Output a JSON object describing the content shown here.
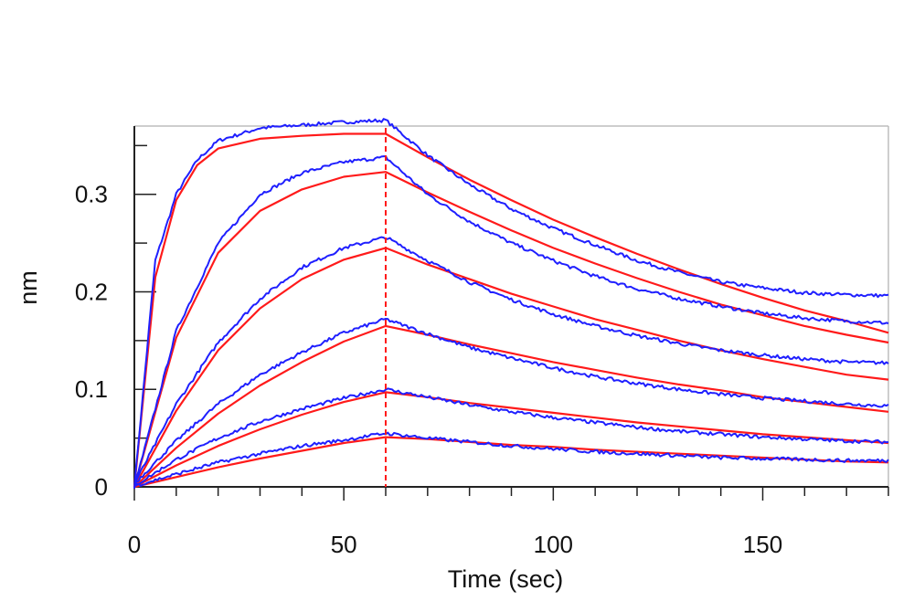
{
  "chart_data": {
    "type": "line",
    "xlabel": "Time (sec)",
    "ylabel": "nm",
    "xlim": [
      0,
      180
    ],
    "ylim": [
      0,
      0.37
    ],
    "x_ticks": [
      0,
      50,
      100,
      150
    ],
    "x_tick_labels": [
      "0",
      "50",
      "100",
      "150"
    ],
    "x_minor_step": 10,
    "y_ticks": [
      0,
      0.1,
      0.2,
      0.3
    ],
    "y_tick_labels": [
      "0",
      "0.1",
      "0.2",
      "0.3"
    ],
    "y_minor_step": 0.05,
    "grid": false,
    "legend": "none",
    "dissociation_start": 60,
    "colors": {
      "measured": "#1f1fff",
      "fit": "#ff1a1a",
      "marker": "#ff1a1a",
      "frame": "#bdbdbd",
      "axis": "#222222"
    },
    "series": [
      {
        "kind": "measured",
        "values": [
          [
            0,
            0
          ],
          [
            5,
            0.232
          ],
          [
            10,
            0.3
          ],
          [
            15,
            0.335
          ],
          [
            20,
            0.355
          ],
          [
            30,
            0.368
          ],
          [
            40,
            0.371
          ],
          [
            50,
            0.374
          ],
          [
            60,
            0.376
          ],
          [
            70,
            0.34
          ],
          [
            80,
            0.31
          ],
          [
            90,
            0.285
          ],
          [
            100,
            0.265
          ],
          [
            110,
            0.248
          ],
          [
            120,
            0.232
          ],
          [
            130,
            0.22
          ],
          [
            140,
            0.21
          ],
          [
            150,
            0.204
          ],
          [
            160,
            0.199
          ],
          [
            170,
            0.197
          ],
          [
            180,
            0.196
          ]
        ]
      },
      {
        "kind": "fit",
        "values": [
          [
            0,
            0
          ],
          [
            5,
            0.215
          ],
          [
            10,
            0.294
          ],
          [
            15,
            0.33
          ],
          [
            20,
            0.347
          ],
          [
            30,
            0.357
          ],
          [
            40,
            0.36
          ],
          [
            50,
            0.362
          ],
          [
            60,
            0.362
          ],
          [
            70,
            0.338
          ],
          [
            80,
            0.315
          ],
          [
            90,
            0.294
          ],
          [
            100,
            0.274
          ],
          [
            110,
            0.256
          ],
          [
            120,
            0.239
          ],
          [
            130,
            0.223
          ],
          [
            140,
            0.208
          ],
          [
            150,
            0.194
          ],
          [
            160,
            0.181
          ],
          [
            170,
            0.17
          ],
          [
            180,
            0.158
          ]
        ]
      },
      {
        "kind": "measured",
        "values": [
          [
            0,
            0
          ],
          [
            10,
            0.16
          ],
          [
            20,
            0.25
          ],
          [
            30,
            0.3
          ],
          [
            40,
            0.322
          ],
          [
            50,
            0.333
          ],
          [
            60,
            0.338
          ],
          [
            70,
            0.3
          ],
          [
            80,
            0.272
          ],
          [
            90,
            0.25
          ],
          [
            100,
            0.232
          ],
          [
            110,
            0.216
          ],
          [
            120,
            0.203
          ],
          [
            130,
            0.193
          ],
          [
            140,
            0.185
          ],
          [
            150,
            0.178
          ],
          [
            160,
            0.173
          ],
          [
            170,
            0.17
          ],
          [
            180,
            0.168
          ]
        ]
      },
      {
        "kind": "fit",
        "values": [
          [
            0,
            0
          ],
          [
            10,
            0.153
          ],
          [
            20,
            0.24
          ],
          [
            30,
            0.283
          ],
          [
            40,
            0.305
          ],
          [
            50,
            0.318
          ],
          [
            60,
            0.323
          ],
          [
            70,
            0.302
          ],
          [
            80,
            0.282
          ],
          [
            90,
            0.263
          ],
          [
            100,
            0.245
          ],
          [
            110,
            0.229
          ],
          [
            120,
            0.214
          ],
          [
            130,
            0.2
          ],
          [
            140,
            0.187
          ],
          [
            150,
            0.176
          ],
          [
            160,
            0.165
          ],
          [
            170,
            0.156
          ],
          [
            180,
            0.148
          ]
        ]
      },
      {
        "kind": "measured",
        "values": [
          [
            0,
            0.003
          ],
          [
            10,
            0.085
          ],
          [
            20,
            0.148
          ],
          [
            30,
            0.193
          ],
          [
            40,
            0.225
          ],
          [
            50,
            0.245
          ],
          [
            60,
            0.256
          ],
          [
            70,
            0.232
          ],
          [
            80,
            0.21
          ],
          [
            90,
            0.192
          ],
          [
            100,
            0.177
          ],
          [
            110,
            0.165
          ],
          [
            120,
            0.155
          ],
          [
            130,
            0.147
          ],
          [
            140,
            0.14
          ],
          [
            150,
            0.135
          ],
          [
            160,
            0.131
          ],
          [
            170,
            0.128
          ],
          [
            180,
            0.127
          ]
        ]
      },
      {
        "kind": "fit",
        "values": [
          [
            0,
            0
          ],
          [
            10,
            0.078
          ],
          [
            20,
            0.14
          ],
          [
            30,
            0.183
          ],
          [
            40,
            0.213
          ],
          [
            50,
            0.233
          ],
          [
            60,
            0.245
          ],
          [
            70,
            0.228
          ],
          [
            80,
            0.213
          ],
          [
            90,
            0.198
          ],
          [
            100,
            0.185
          ],
          [
            110,
            0.172
          ],
          [
            120,
            0.161
          ],
          [
            130,
            0.15
          ],
          [
            140,
            0.14
          ],
          [
            150,
            0.131
          ],
          [
            160,
            0.123
          ],
          [
            170,
            0.115
          ],
          [
            180,
            0.11
          ]
        ]
      },
      {
        "kind": "measured",
        "values": [
          [
            0,
            0.003
          ],
          [
            10,
            0.047
          ],
          [
            20,
            0.085
          ],
          [
            30,
            0.115
          ],
          [
            40,
            0.138
          ],
          [
            50,
            0.158
          ],
          [
            60,
            0.172
          ],
          [
            70,
            0.157
          ],
          [
            80,
            0.143
          ],
          [
            90,
            0.132
          ],
          [
            100,
            0.122
          ],
          [
            110,
            0.113
          ],
          [
            120,
            0.106
          ],
          [
            130,
            0.1
          ],
          [
            140,
            0.095
          ],
          [
            150,
            0.091
          ],
          [
            160,
            0.088
          ],
          [
            170,
            0.085
          ],
          [
            180,
            0.083
          ]
        ]
      },
      {
        "kind": "fit",
        "values": [
          [
            0,
            0
          ],
          [
            10,
            0.04
          ],
          [
            20,
            0.075
          ],
          [
            30,
            0.104
          ],
          [
            40,
            0.128
          ],
          [
            50,
            0.149
          ],
          [
            60,
            0.165
          ],
          [
            70,
            0.156
          ],
          [
            80,
            0.146
          ],
          [
            90,
            0.137
          ],
          [
            100,
            0.128
          ],
          [
            110,
            0.12
          ],
          [
            120,
            0.112
          ],
          [
            130,
            0.105
          ],
          [
            140,
            0.099
          ],
          [
            150,
            0.092
          ],
          [
            160,
            0.087
          ],
          [
            170,
            0.082
          ],
          [
            180,
            0.077
          ]
        ]
      },
      {
        "kind": "measured",
        "values": [
          [
            0,
            0.001
          ],
          [
            10,
            0.028
          ],
          [
            20,
            0.05
          ],
          [
            30,
            0.067
          ],
          [
            40,
            0.08
          ],
          [
            50,
            0.091
          ],
          [
            60,
            0.1
          ],
          [
            70,
            0.092
          ],
          [
            80,
            0.084
          ],
          [
            90,
            0.077
          ],
          [
            100,
            0.071
          ],
          [
            110,
            0.066
          ],
          [
            120,
            0.061
          ],
          [
            130,
            0.057
          ],
          [
            140,
            0.054
          ],
          [
            150,
            0.051
          ],
          [
            160,
            0.049
          ],
          [
            170,
            0.047
          ],
          [
            180,
            0.046
          ]
        ]
      },
      {
        "kind": "fit",
        "values": [
          [
            0,
            0
          ],
          [
            10,
            0.022
          ],
          [
            20,
            0.042
          ],
          [
            30,
            0.059
          ],
          [
            40,
            0.074
          ],
          [
            50,
            0.087
          ],
          [
            60,
            0.097
          ],
          [
            70,
            0.092
          ],
          [
            80,
            0.086
          ],
          [
            90,
            0.081
          ],
          [
            100,
            0.076
          ],
          [
            110,
            0.071
          ],
          [
            120,
            0.066
          ],
          [
            130,
            0.062
          ],
          [
            140,
            0.058
          ],
          [
            150,
            0.054
          ],
          [
            160,
            0.051
          ],
          [
            170,
            0.048
          ],
          [
            180,
            0.045
          ]
        ]
      },
      {
        "kind": "measured",
        "values": [
          [
            0,
            0.001
          ],
          [
            10,
            0.013
          ],
          [
            20,
            0.025
          ],
          [
            30,
            0.034
          ],
          [
            40,
            0.042
          ],
          [
            50,
            0.048
          ],
          [
            60,
            0.055
          ],
          [
            70,
            0.05
          ],
          [
            80,
            0.046
          ],
          [
            90,
            0.042
          ],
          [
            100,
            0.039
          ],
          [
            110,
            0.036
          ],
          [
            120,
            0.034
          ],
          [
            130,
            0.032
          ],
          [
            140,
            0.03
          ],
          [
            150,
            0.029
          ],
          [
            160,
            0.028
          ],
          [
            170,
            0.027
          ],
          [
            180,
            0.027
          ]
        ]
      },
      {
        "kind": "fit",
        "values": [
          [
            0,
            0
          ],
          [
            10,
            0.01
          ],
          [
            20,
            0.02
          ],
          [
            30,
            0.029
          ],
          [
            40,
            0.037
          ],
          [
            50,
            0.045
          ],
          [
            60,
            0.051
          ],
          [
            70,
            0.049
          ],
          [
            80,
            0.046
          ],
          [
            90,
            0.043
          ],
          [
            100,
            0.041
          ],
          [
            110,
            0.038
          ],
          [
            120,
            0.036
          ],
          [
            130,
            0.034
          ],
          [
            140,
            0.032
          ],
          [
            150,
            0.03
          ],
          [
            160,
            0.028
          ],
          [
            170,
            0.026
          ],
          [
            180,
            0.025
          ]
        ]
      }
    ]
  }
}
